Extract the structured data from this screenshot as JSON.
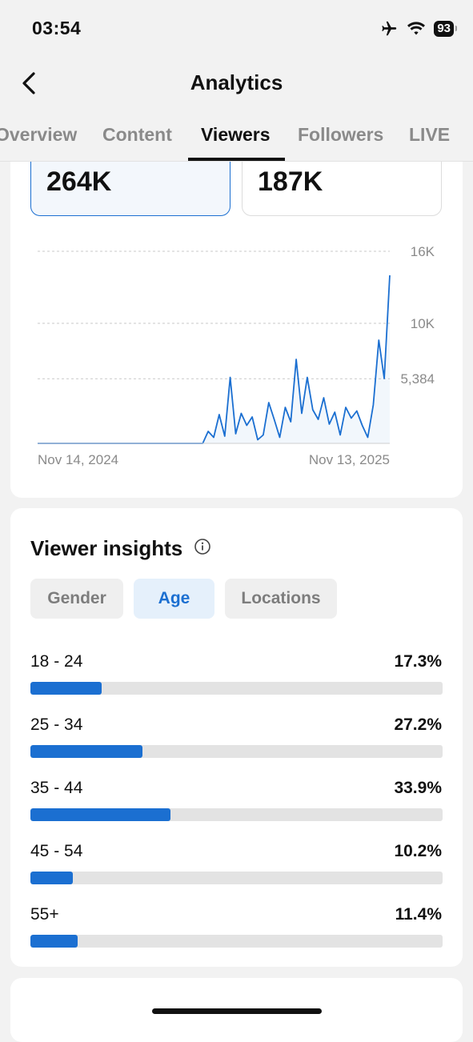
{
  "status_bar": {
    "time": "03:54",
    "battery": "93"
  },
  "header": {
    "title": "Analytics"
  },
  "tabs": [
    {
      "label": "Overview"
    },
    {
      "label": "Content"
    },
    {
      "label": "Viewers"
    },
    {
      "label": "Followers"
    },
    {
      "label": "LIVE"
    }
  ],
  "active_tab": "Viewers",
  "metrics": [
    {
      "value": "264K",
      "selected": true
    },
    {
      "value": "187K",
      "selected": false
    }
  ],
  "chart_data": {
    "type": "line",
    "y_ticks": [
      "16K",
      "10K",
      "5,384"
    ],
    "y_tick_values": [
      16000,
      10000,
      5384
    ],
    "x_start_label": "Nov 14, 2024",
    "x_end_label": "Nov 13, 2025",
    "ylim": [
      0,
      16000
    ],
    "grid": true,
    "line_color": "#1b6fd1",
    "x": [
      0,
      1,
      2,
      3,
      4,
      5,
      6,
      7,
      8,
      9,
      10,
      11,
      12,
      13,
      14,
      15,
      16,
      17,
      18,
      19,
      20,
      21,
      22,
      23,
      24,
      25,
      26,
      27,
      28,
      29,
      30,
      31,
      32,
      33,
      34,
      35,
      36,
      37,
      38,
      39,
      40,
      41,
      42,
      43,
      44,
      45,
      46,
      47,
      48,
      49,
      50,
      51,
      52,
      53,
      54,
      55,
      56,
      57,
      58,
      59,
      60,
      61,
      62,
      63,
      64
    ],
    "values": [
      0,
      0,
      0,
      0,
      0,
      0,
      0,
      0,
      0,
      0,
      0,
      0,
      0,
      0,
      0,
      0,
      0,
      0,
      0,
      0,
      0,
      0,
      0,
      0,
      0,
      0,
      0,
      0,
      0,
      0,
      0,
      1000,
      500,
      2400,
      600,
      5500,
      800,
      2500,
      1500,
      2200,
      300,
      700,
      3400,
      2000,
      500,
      3000,
      1800,
      7000,
      2500,
      5500,
      2800,
      2000,
      3800,
      1600,
      2600,
      700,
      3000,
      2100,
      2700,
      1500,
      500,
      3200,
      8600,
      5400,
      14000
    ]
  },
  "insights": {
    "title": "Viewer insights",
    "filters": [
      {
        "label": "Gender",
        "selected": false
      },
      {
        "label": "Age",
        "selected": true
      },
      {
        "label": "Locations",
        "selected": false
      }
    ],
    "age_groups": [
      {
        "label": "18 - 24",
        "percent": "17.3%",
        "share": 17.3
      },
      {
        "label": "25 - 34",
        "percent": "27.2%",
        "share": 27.2
      },
      {
        "label": "35 - 44",
        "percent": "33.9%",
        "share": 33.9
      },
      {
        "label": "45 - 54",
        "percent": "10.2%",
        "share": 10.2
      },
      {
        "label": "55+",
        "percent": "11.4%",
        "share": 11.4
      }
    ]
  },
  "colors": {
    "accent": "#1b6fd1",
    "background": "#f2f2f2"
  }
}
